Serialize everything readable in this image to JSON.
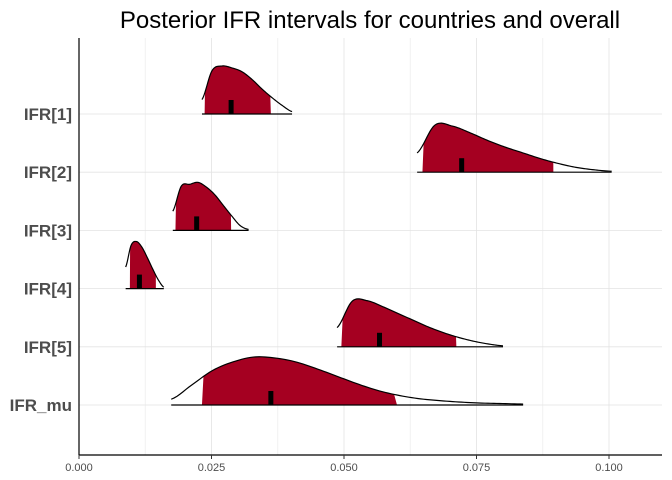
{
  "chart_data": {
    "type": "area",
    "subtype": "ridgeline-density-intervals",
    "title": "Posterior IFR intervals for countries and overall",
    "xlabel": "",
    "ylabel": "",
    "xlim": [
      0.0,
      0.11
    ],
    "xticks": [
      0.0,
      0.025,
      0.05,
      0.075,
      0.1
    ],
    "xtick_labels": [
      "0.000",
      "0.025",
      "0.050",
      "0.075",
      "0.100"
    ],
    "grid": true,
    "fill_color": "#a50021",
    "series": [
      {
        "name": "IFR[1]",
        "range": [
          0.0232,
          0.0402
        ],
        "interval": [
          0.0237,
          0.0362
        ],
        "point": 0.0287,
        "density": [
          0.3,
          0.9,
          1.0,
          0.96,
          0.88,
          0.72,
          0.52,
          0.34,
          0.18,
          0.05
        ]
      },
      {
        "name": "IFR[2]",
        "range": [
          0.0638,
          0.1005
        ],
        "interval": [
          0.0648,
          0.0895
        ],
        "point": 0.0722,
        "density": [
          0.4,
          0.98,
          0.96,
          0.82,
          0.66,
          0.52,
          0.4,
          0.28,
          0.18,
          0.1,
          0.05,
          0.02
        ]
      },
      {
        "name": "IFR[3]",
        "range": [
          0.0177,
          0.032
        ],
        "interval": [
          0.0182,
          0.0287
        ],
        "point": 0.0222,
        "density": [
          0.4,
          0.92,
          0.96,
          1.0,
          0.9,
          0.74,
          0.52,
          0.3,
          0.1,
          0.02
        ]
      },
      {
        "name": "IFR[4]",
        "range": [
          0.0088,
          0.016
        ],
        "interval": [
          0.0096,
          0.0145
        ],
        "point": 0.0114,
        "density": [
          0.45,
          0.9,
          0.98,
          0.86,
          0.64,
          0.4,
          0.18,
          0.03
        ]
      },
      {
        "name": "IFR[5]",
        "range": [
          0.0487,
          0.08
        ],
        "interval": [
          0.0495,
          0.0712
        ],
        "point": 0.0567,
        "density": [
          0.4,
          0.95,
          0.96,
          0.84,
          0.7,
          0.56,
          0.42,
          0.3,
          0.2,
          0.12,
          0.06,
          0.02
        ]
      },
      {
        "name": "IFR_mu",
        "range": [
          0.0174,
          0.0838
        ],
        "interval": [
          0.0232,
          0.06
        ],
        "point": 0.0362,
        "density": [
          0.12,
          0.42,
          0.72,
          0.9,
          1.0,
          0.98,
          0.9,
          0.76,
          0.6,
          0.44,
          0.3,
          0.2,
          0.13,
          0.09,
          0.06,
          0.04,
          0.03,
          0.02
        ]
      }
    ]
  }
}
